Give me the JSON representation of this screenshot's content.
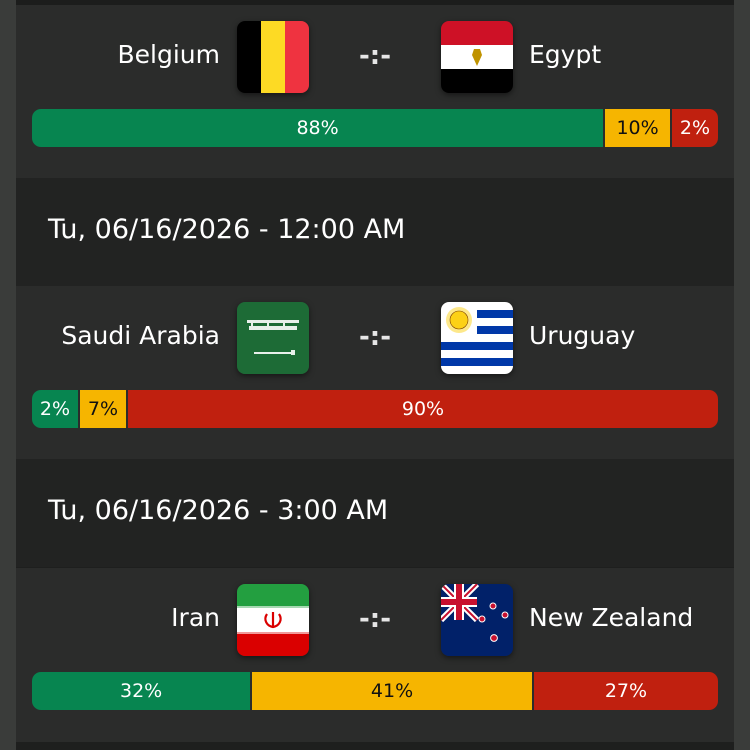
{
  "colors": {
    "home_win": "#078550",
    "draw": "#f6b500",
    "away_win": "#c0200f"
  },
  "matches": [
    {
      "home": "Belgium",
      "away": "Egypt",
      "home_flag": "belgium-flag-icon",
      "away_flag": "egypt-flag-icon",
      "score": "-:-",
      "probabilities": {
        "home": 88,
        "draw": 10,
        "away": 2
      },
      "labels": {
        "home": "88%",
        "draw": "10%",
        "away": "2%"
      }
    },
    {
      "date": "Tu, 06/16/2026 - 12:00 AM",
      "home": "Saudi Arabia",
      "away": "Uruguay",
      "home_flag": "saudi-arabia-flag-icon",
      "away_flag": "uruguay-flag-icon",
      "score": "-:-",
      "probabilities": {
        "home": 2,
        "draw": 7,
        "away": 90
      },
      "labels": {
        "home": "2%",
        "draw": "7%",
        "away": "90%"
      }
    },
    {
      "date": "Tu, 06/16/2026 - 3:00 AM",
      "home": "Iran",
      "away": "New Zealand",
      "home_flag": "iran-flag-icon",
      "away_flag": "new-zealand-flag-icon",
      "score": "-:-",
      "probabilities": {
        "home": 32,
        "draw": 41,
        "away": 27
      },
      "labels": {
        "home": "32%",
        "draw": "41%",
        "away": "27%"
      }
    }
  ]
}
